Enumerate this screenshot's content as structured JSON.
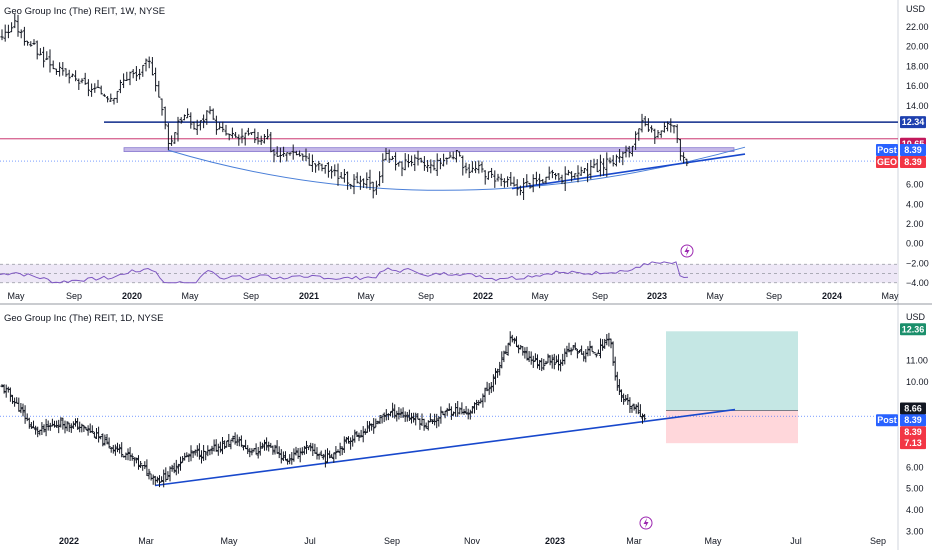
{
  "colors": {
    "up": "#26a69a",
    "down": "#ef5350",
    "bar": "#131722",
    "trendline": "#1848cc",
    "arc": "#4a7fd8",
    "resistance": "#0d2a8a",
    "rsi_line": "#7e57c2",
    "rsi_band": "#ede7f6",
    "magenta": "#c2185b",
    "badge_blue": "#2962ff",
    "badge_red": "#f23645",
    "badge_navy": "#1e40af",
    "badge_green": "#1b8f6b",
    "grid": "#f0f3fa",
    "axis_text": "#131722"
  },
  "chart_data": [
    {
      "type": "ohlc",
      "title": "Geo Group Inc (The) REIT, 1W, NYSE",
      "currency": "USD",
      "y_ticks": [
        "22.00",
        "20.00",
        "18.00",
        "16.00",
        "14.00",
        "12.00",
        "10.00",
        "8.00",
        "6.00",
        "4.00",
        "2.00",
        "0.00",
        "−2.00",
        "−4.00"
      ],
      "ylim": [
        -4,
        23
      ],
      "x_ticks": [
        "May",
        "Sep",
        "2020",
        "May",
        "Sep",
        "2021",
        "May",
        "Sep",
        "2022",
        "May",
        "Sep",
        "2023",
        "May",
        "Sep",
        "2024",
        "May"
      ],
      "x_bold": [
        "2020",
        "2021",
        "2022",
        "2023",
        "2024"
      ],
      "price_path": [
        [
          0,
          21.0
        ],
        [
          8,
          21.5
        ],
        [
          14,
          22.4
        ],
        [
          22,
          21.1
        ],
        [
          30,
          20.4
        ],
        [
          40,
          19.2
        ],
        [
          48,
          18.6
        ],
        [
          56,
          17.8
        ],
        [
          64,
          17.1
        ],
        [
          72,
          16.8
        ],
        [
          80,
          16.4
        ],
        [
          88,
          15.8
        ],
        [
          96,
          15.5
        ],
        [
          104,
          15.2
        ],
        [
          112,
          14.9
        ],
        [
          118,
          15.8
        ],
        [
          124,
          16.6
        ],
        [
          130,
          17.3
        ],
        [
          136,
          17.0
        ],
        [
          142,
          17.6
        ],
        [
          148,
          18.6
        ],
        [
          154,
          17.2
        ],
        [
          160,
          14.4
        ],
        [
          166,
          11.6
        ],
        [
          170,
          9.9
        ],
        [
          178,
          12.6
        ],
        [
          186,
          13.0
        ],
        [
          194,
          11.8
        ],
        [
          202,
          12.4
        ],
        [
          208,
          13.6
        ],
        [
          214,
          12.2
        ],
        [
          222,
          11.4
        ],
        [
          230,
          10.9
        ],
        [
          240,
          10.7
        ],
        [
          250,
          11.0
        ],
        [
          260,
          10.6
        ],
        [
          266,
          11.4
        ],
        [
          272,
          9.2
        ],
        [
          280,
          8.8
        ],
        [
          290,
          9.5
        ],
        [
          300,
          9.0
        ],
        [
          310,
          8.3
        ],
        [
          320,
          7.8
        ],
        [
          330,
          7.5
        ],
        [
          340,
          6.8
        ],
        [
          350,
          6.4
        ],
        [
          358,
          5.9
        ],
        [
          366,
          6.2
        ],
        [
          374,
          5.6
        ],
        [
          380,
          7.1
        ],
        [
          386,
          9.6
        ],
        [
          392,
          8.4
        ],
        [
          400,
          7.9
        ],
        [
          410,
          8.6
        ],
        [
          420,
          8.1
        ],
        [
          430,
          7.8
        ],
        [
          440,
          8.3
        ],
        [
          448,
          8.8
        ],
        [
          456,
          9.1
        ],
        [
          462,
          8.2
        ],
        [
          470,
          7.5
        ],
        [
          480,
          7.6
        ],
        [
          490,
          6.9
        ],
        [
          500,
          6.6
        ],
        [
          510,
          6.0
        ],
        [
          516,
          5.6
        ],
        [
          524,
          6.0
        ],
        [
          532,
          6.2
        ],
        [
          540,
          6.4
        ],
        [
          548,
          6.7
        ],
        [
          556,
          6.9
        ],
        [
          564,
          6.6
        ],
        [
          572,
          7.1
        ],
        [
          580,
          7.0
        ],
        [
          590,
          7.4
        ],
        [
          600,
          7.9
        ],
        [
          610,
          8.3
        ],
        [
          620,
          8.9
        ],
        [
          630,
          9.5
        ],
        [
          636,
          10.8
        ],
        [
          642,
          12.1
        ],
        [
          648,
          11.5
        ],
        [
          654,
          11.0
        ],
        [
          660,
          11.6
        ],
        [
          666,
          11.9
        ],
        [
          672,
          12.2
        ],
        [
          676,
          11.3
        ],
        [
          680,
          9.4
        ],
        [
          684,
          8.9
        ],
        [
          688,
          8.4
        ]
      ],
      "levels": [
        {
          "name": "resistance",
          "value": 12.34
        },
        {
          "name": "magenta",
          "value": 10.65
        },
        {
          "name": "support-band-top",
          "value": 9.75
        },
        {
          "name": "support-band-bottom",
          "value": 9.35
        },
        {
          "name": "last",
          "value": 8.39
        }
      ],
      "price_badges": [
        {
          "label": "",
          "value": "12.34",
          "bg": "badge_navy"
        },
        {
          "label": "",
          "value": "10.65",
          "bg": "magenta"
        },
        {
          "label": "Post",
          "value": "8.39",
          "bg": "badge_blue"
        },
        {
          "label": "GEO",
          "value": "8.39",
          "bg": "badge_red"
        }
      ],
      "rsi": {
        "lim": [
          10,
          90
        ],
        "upper": 70,
        "lower": 30,
        "mid": 50
      },
      "icon": "lightning-icon"
    },
    {
      "type": "ohlc",
      "title": "Geo Group Inc (The) REIT, 1D, NYSE",
      "currency": "USD",
      "y_ticks": [
        "12.00",
        "11.00",
        "10.00",
        "9.00",
        "8.00",
        "7.00",
        "6.00",
        "5.00",
        "4.00",
        "3.00"
      ],
      "ylim": [
        2.6,
        12.6
      ],
      "x_ticks": [
        "2022",
        "Mar",
        "May",
        "Jul",
        "Sep",
        "Nov",
        "2023",
        "Mar",
        "May",
        "Jul",
        "Sep"
      ],
      "x_bold": [
        "2022",
        "2023"
      ],
      "price_path": [
        [
          0,
          9.8
        ],
        [
          8,
          9.5
        ],
        [
          14,
          9.1
        ],
        [
          20,
          8.7
        ],
        [
          26,
          8.3
        ],
        [
          32,
          7.8
        ],
        [
          40,
          7.7
        ],
        [
          50,
          7.9
        ],
        [
          60,
          8.1
        ],
        [
          70,
          8.0
        ],
        [
          80,
          7.9
        ],
        [
          90,
          7.7
        ],
        [
          100,
          7.3
        ],
        [
          110,
          7.0
        ],
        [
          120,
          6.8
        ],
        [
          130,
          6.5
        ],
        [
          140,
          6.1
        ],
        [
          150,
          5.7
        ],
        [
          158,
          5.4
        ],
        [
          166,
          5.6
        ],
        [
          176,
          6.1
        ],
        [
          186,
          6.5
        ],
        [
          196,
          6.7
        ],
        [
          206,
          6.6
        ],
        [
          216,
          6.9
        ],
        [
          226,
          7.1
        ],
        [
          236,
          7.3
        ],
        [
          246,
          6.9
        ],
        [
          256,
          6.7
        ],
        [
          266,
          7.1
        ],
        [
          276,
          6.8
        ],
        [
          286,
          6.3
        ],
        [
          296,
          6.6
        ],
        [
          306,
          6.9
        ],
        [
          316,
          6.7
        ],
        [
          326,
          6.4
        ],
        [
          336,
          6.8
        ],
        [
          346,
          7.2
        ],
        [
          356,
          7.5
        ],
        [
          366,
          7.7
        ],
        [
          376,
          8.1
        ],
        [
          386,
          8.5
        ],
        [
          396,
          8.6
        ],
        [
          406,
          8.4
        ],
        [
          416,
          8.3
        ],
        [
          426,
          8.0
        ],
        [
          436,
          8.3
        ],
        [
          446,
          8.6
        ],
        [
          456,
          8.7
        ],
        [
          466,
          8.5
        ],
        [
          474,
          8.8
        ],
        [
          482,
          9.3
        ],
        [
          490,
          9.8
        ],
        [
          498,
          10.6
        ],
        [
          506,
          11.4
        ],
        [
          512,
          12.1
        ],
        [
          518,
          11.6
        ],
        [
          526,
          11.2
        ],
        [
          534,
          11.0
        ],
        [
          542,
          10.8
        ],
        [
          550,
          11.1
        ],
        [
          558,
          10.9
        ],
        [
          566,
          11.3
        ],
        [
          574,
          11.6
        ],
        [
          582,
          11.2
        ],
        [
          590,
          11.5
        ],
        [
          598,
          11.4
        ],
        [
          604,
          11.8
        ],
        [
          610,
          12.2
        ],
        [
          614,
          10.5
        ],
        [
          620,
          9.3
        ],
        [
          626,
          9.0
        ],
        [
          634,
          8.8
        ],
        [
          640,
          8.5
        ],
        [
          646,
          8.39
        ]
      ],
      "position": {
        "entry": 8.66,
        "target": 12.36,
        "stop": 7.13
      },
      "price_badges": [
        {
          "label": "",
          "value": "12.36",
          "bg": "badge_green"
        },
        {
          "label": "",
          "value": "8.66",
          "bg": "bar"
        },
        {
          "label": "Post",
          "value": "8.39",
          "bg": "badge_blue"
        },
        {
          "label": "",
          "value": "8.39",
          "bg": "badge_red"
        },
        {
          "label": "",
          "value": "7.13",
          "bg": "badge_red"
        }
      ],
      "icon": "lightning-icon"
    }
  ]
}
